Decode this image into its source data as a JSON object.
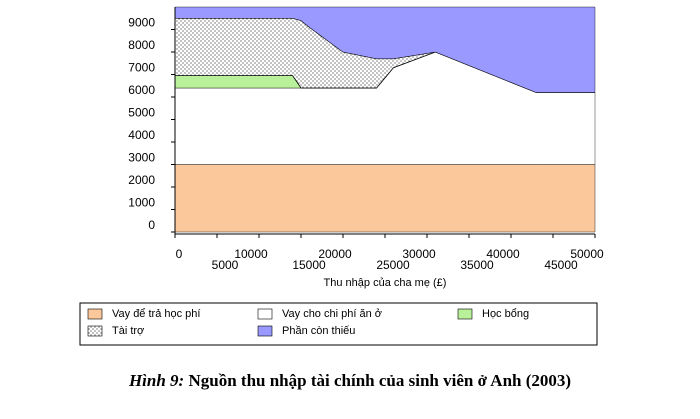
{
  "chart_data": {
    "type": "stacked_area",
    "x_label": "Thu nhập của cha mẹ (£)",
    "caption_label": "Hình 9:",
    "title": "Nguồn thu nhập tài chính của sinh viên ở Anh (2003)",
    "x": [
      0,
      14000,
      15000,
      16000,
      20000,
      24000,
      26000,
      31000,
      43000,
      50000
    ],
    "series": [
      {
        "name": "Vay để trả học phí",
        "color": "#fbc89c",
        "values": [
          3000,
          3000,
          3000,
          3000,
          3000,
          3000,
          3000,
          3000,
          3000,
          3000
        ]
      },
      {
        "name": "Vay cho chi phí ăn ở",
        "color": "#ffffff",
        "values": [
          3400,
          3400,
          3400,
          3400,
          3400,
          3400,
          4300,
          5000,
          3200,
          3200
        ]
      },
      {
        "name": "Học bổng",
        "color": "#b9f09a",
        "values": [
          550,
          550,
          0,
          0,
          0,
          0,
          0,
          0,
          0,
          0
        ]
      },
      {
        "name": "Tài trợ",
        "color": "#ffffff",
        "pattern": "dots",
        "values": [
          2550,
          2550,
          3000,
          2700,
          1600,
          1300,
          400,
          0,
          0,
          0
        ]
      },
      {
        "name": "Phần còn thiếu",
        "color": "#9999ff",
        "values": [
          500,
          500,
          600,
          900,
          2000,
          2300,
          2300,
          2000,
          3800,
          3800
        ]
      }
    ],
    "xlim": [
      0,
      50000
    ],
    "xticks": [
      0,
      5000,
      10000,
      15000,
      20000,
      25000,
      30000,
      35000,
      40000,
      45000,
      50000
    ],
    "ylim": [
      0,
      10000
    ],
    "yticks": [
      0,
      1000,
      2000,
      3000,
      4000,
      5000,
      6000,
      7000,
      8000,
      9000
    ]
  }
}
